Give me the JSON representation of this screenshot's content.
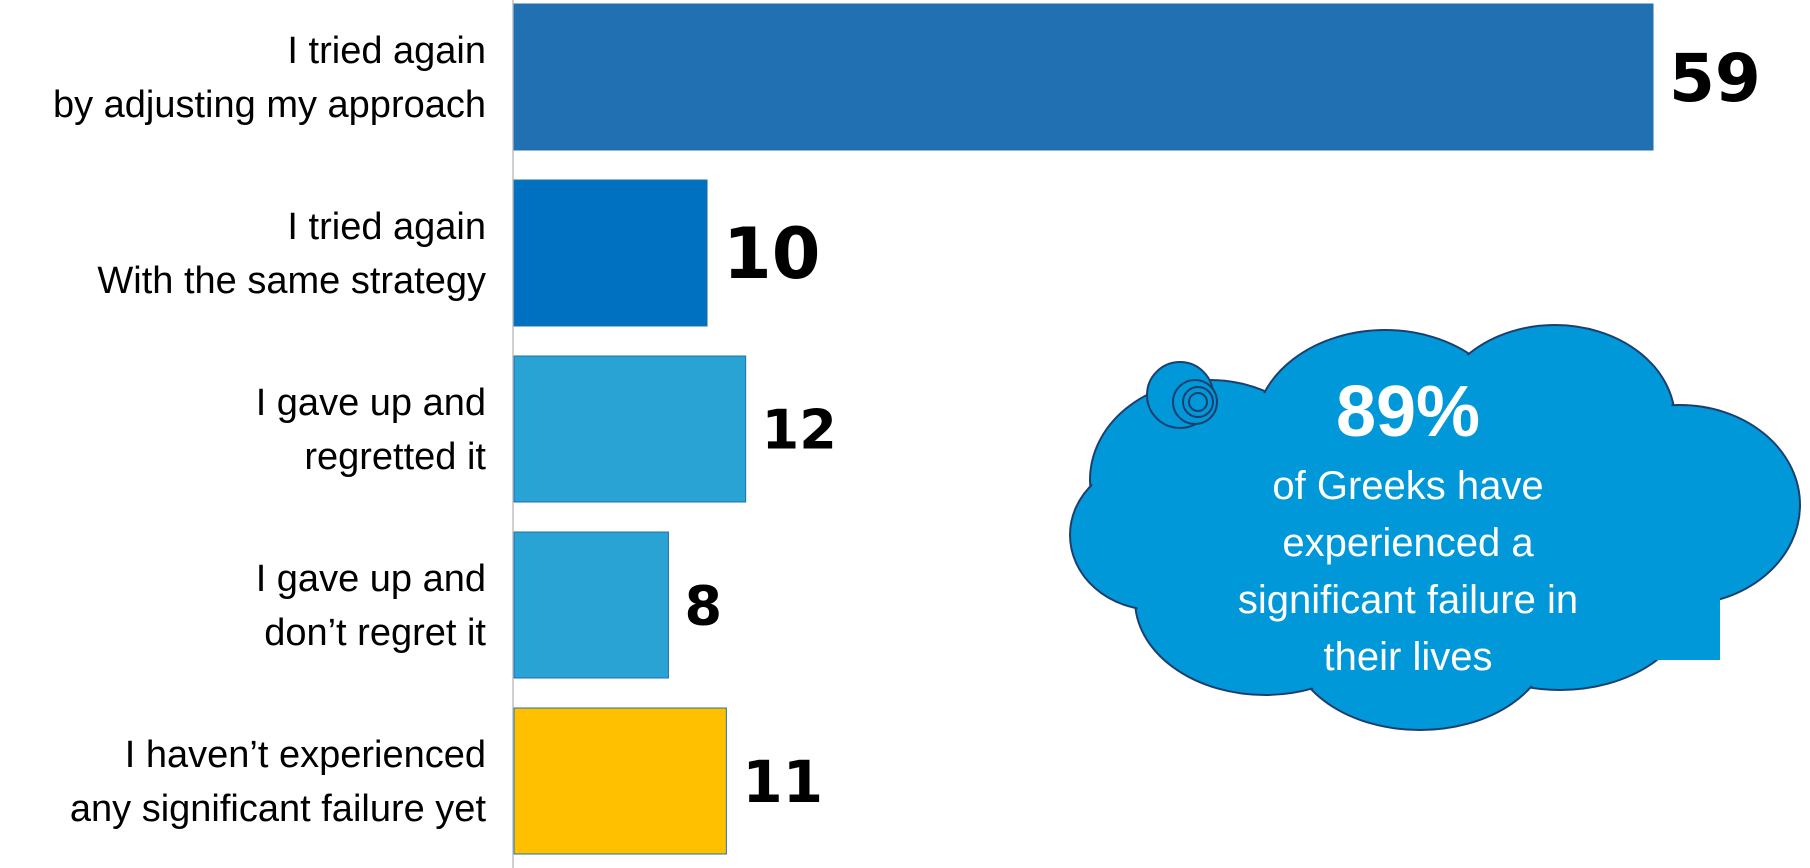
{
  "chart_data": {
    "type": "bar",
    "orientation": "horizontal",
    "categories": [
      {
        "highlight": "I tried again",
        "lines": [
          "by adjusting my approach"
        ]
      },
      {
        "highlight": "I tried again",
        "lines": [
          "With the same strategy"
        ]
      },
      {
        "highlight": "",
        "lines": [
          "I gave up and",
          "regretted it"
        ]
      },
      {
        "highlight": "",
        "lines": [
          "I gave up and",
          "don’t regret it"
        ]
      },
      {
        "highlight": "",
        "lines": [
          "I haven’t experienced",
          "any significant failure yet"
        ]
      }
    ],
    "values": [
      59,
      10,
      12,
      8,
      11
    ],
    "value_labels": [
      "59",
      "10",
      "12",
      "8",
      "11"
    ],
    "colors": [
      "#2170b2",
      "#0070c0",
      "#29a3d3",
      "#29a3d3",
      "#ffc000"
    ],
    "label_highlight_color": "#1f7bc1",
    "xlim": [
      0,
      59
    ],
    "grid": false,
    "legend": "none",
    "title": "",
    "xlabel": "",
    "ylabel": ""
  },
  "callout": {
    "percent": "89%",
    "lines": [
      "of Greeks have",
      "experienced a",
      "significant failure in",
      "their lives"
    ],
    "fill_color": "#0098d9",
    "border_color": "#1d3f6e"
  }
}
